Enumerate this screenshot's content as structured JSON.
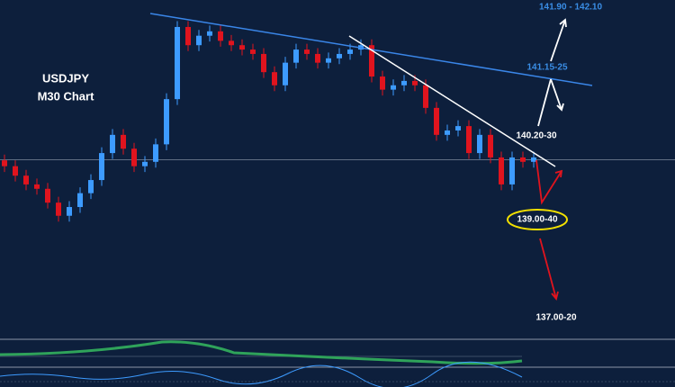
{
  "chart_data": {
    "type": "candlestick",
    "title": "USDJPY",
    "subtitle": "M30 Chart",
    "ylim": [
      137.37,
      142.0
    ],
    "level_line": 139.81,
    "up_color": "#3d9bff",
    "down_color": "#e0141e",
    "open": [
      139.8,
      139.72,
      139.59,
      139.47,
      139.41,
      139.22,
      139.04,
      139.16,
      139.35,
      139.53,
      139.9,
      140.15,
      139.96,
      139.72,
      139.78,
      140.02,
      140.64,
      141.63,
      141.38,
      141.51,
      141.57,
      141.44,
      141.38,
      141.32,
      141.26,
      141.01,
      140.83,
      141.14,
      141.32,
      141.26,
      141.14,
      141.2,
      141.26,
      141.32,
      141.38,
      140.95,
      140.77,
      140.83,
      140.89,
      140.83,
      140.52,
      140.15,
      140.21,
      140.27,
      139.9,
      140.15,
      139.84,
      139.47,
      139.84,
      139.78
    ],
    "high": [
      139.88,
      139.8,
      139.67,
      139.55,
      139.49,
      139.3,
      139.24,
      139.43,
      139.61,
      139.98,
      140.23,
      140.23,
      140.04,
      139.86,
      140.1,
      140.72,
      141.71,
      141.71,
      141.59,
      141.65,
      141.65,
      141.52,
      141.46,
      141.4,
      141.34,
      141.09,
      141.22,
      141.4,
      141.4,
      141.34,
      141.28,
      141.34,
      141.4,
      141.46,
      141.46,
      141.03,
      140.91,
      140.97,
      140.97,
      140.91,
      140.6,
      140.29,
      140.35,
      140.35,
      140.23,
      140.23,
      139.92,
      139.92,
      139.92,
      139.92
    ],
    "low": [
      139.64,
      139.51,
      139.39,
      139.33,
      139.14,
      138.96,
      138.96,
      139.08,
      139.27,
      139.45,
      139.82,
      139.88,
      139.64,
      139.64,
      139.7,
      139.94,
      140.56,
      141.3,
      141.3,
      141.43,
      141.36,
      141.3,
      141.24,
      141.18,
      140.93,
      140.75,
      140.75,
      141.06,
      141.18,
      141.06,
      141.06,
      141.12,
      141.18,
      141.24,
      140.87,
      140.69,
      140.69,
      140.75,
      140.75,
      140.44,
      140.07,
      140.07,
      140.13,
      139.82,
      139.82,
      139.76,
      139.39,
      139.39,
      139.7,
      139.7
    ],
    "close": [
      139.72,
      139.59,
      139.47,
      139.41,
      139.22,
      139.04,
      139.16,
      139.35,
      139.53,
      139.9,
      140.15,
      139.96,
      139.72,
      139.78,
      140.02,
      140.64,
      141.63,
      141.38,
      141.51,
      141.57,
      141.44,
      141.38,
      141.32,
      141.26,
      141.01,
      140.83,
      141.14,
      141.32,
      141.26,
      141.14,
      141.2,
      141.26,
      141.32,
      141.38,
      140.95,
      140.77,
      140.83,
      140.89,
      140.83,
      140.52,
      140.15,
      140.21,
      140.27,
      139.9,
      140.15,
      139.84,
      139.47,
      139.84,
      139.78,
      139.84
    ],
    "annotations": [
      "141.90 - 142.10",
      "141.15-25",
      "140.20-30",
      "139.00-40",
      "137.00-20"
    ]
  }
}
